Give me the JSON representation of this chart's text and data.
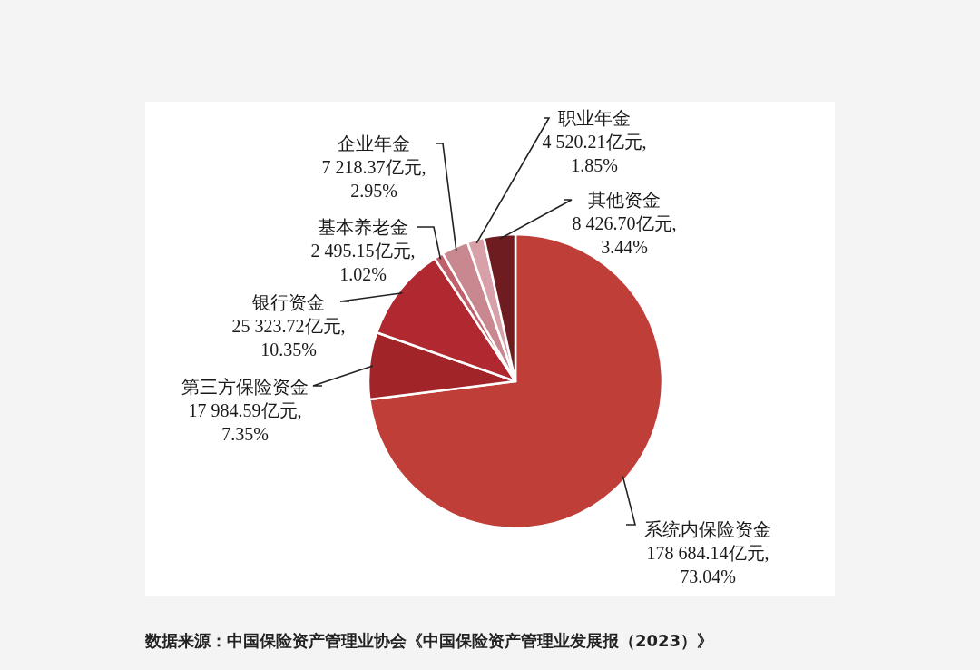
{
  "chart_data": {
    "type": "pie",
    "categories": [
      "系统内保险资金",
      "第三方保险资金",
      "银行资金",
      "基本养老金",
      "企业年金",
      "职业年金",
      "其他资金"
    ],
    "values": [
      178684.14,
      17984.59,
      25323.72,
      2495.15,
      7218.37,
      4520.21,
      8426.7
    ],
    "value_labels": [
      "178 684.14亿元,\n73.04%",
      "17 984.59亿元,\n7.35%",
      "25 323.72亿元,\n10.35%",
      "2 495.15亿元,\n1.02%",
      "7 218.37亿元,\n2.95%",
      "4 520.21亿元,\n1.85%",
      "8 426.70亿元,\n3.44%"
    ],
    "colors": [
      "#bf3f38",
      "#a02428",
      "#b02830",
      "#c0606a",
      "#c98890",
      "#d8a0a8",
      "#6e1c20"
    ],
    "annotations": [
      "数据来源：中国保险资产管理业协会《中国保险资产管理业发展报（2023）》"
    ]
  }
}
